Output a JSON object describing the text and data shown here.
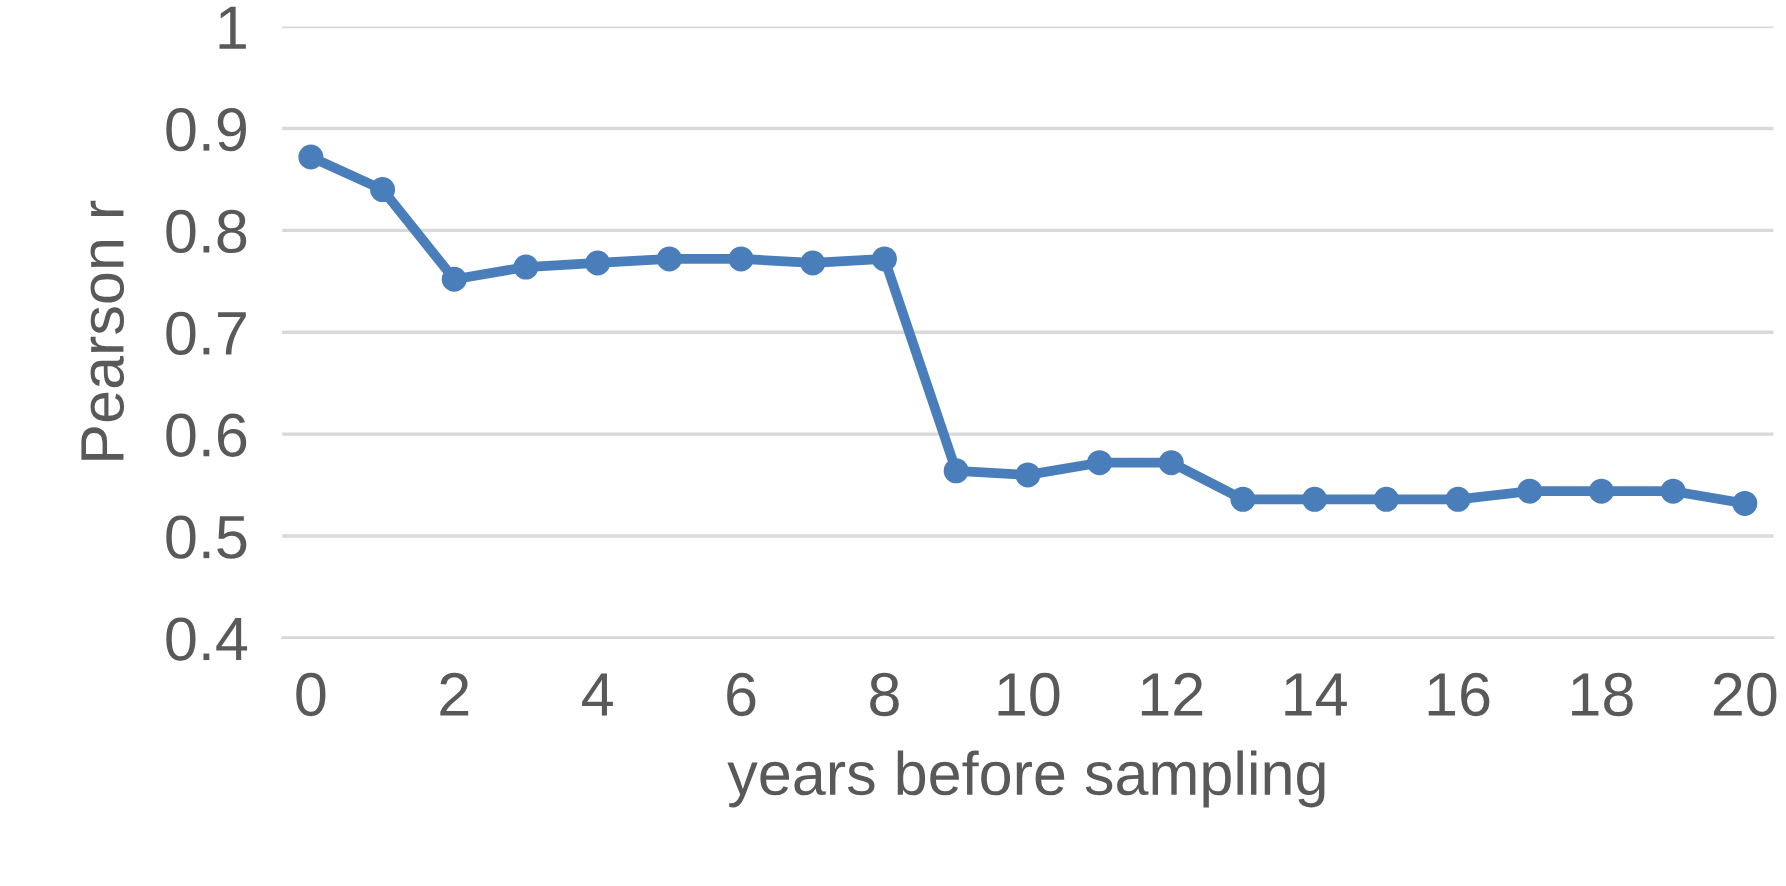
{
  "chart_data": {
    "type": "line",
    "xlabel": "years before sampling",
    "ylabel": "Pearson r",
    "x": [
      0,
      1,
      2,
      3,
      4,
      5,
      6,
      7,
      8,
      9,
      10,
      11,
      12,
      13,
      14,
      15,
      16,
      17,
      18,
      19,
      20
    ],
    "series": [
      {
        "color": "#4a7ebb",
        "values": [
          0.872,
          0.84,
          0.752,
          0.764,
          0.768,
          0.772,
          0.772,
          0.768,
          0.772,
          0.564,
          0.56,
          0.572,
          0.572,
          0.536,
          0.536,
          0.536,
          0.536,
          0.544,
          0.544,
          0.544,
          0.532
        ]
      }
    ],
    "xlim": [
      -0.4,
      20.4
    ],
    "xticks": [
      0,
      2,
      4,
      6,
      8,
      10,
      12,
      14,
      16,
      18,
      20
    ],
    "ylim": [
      0.4,
      1
    ],
    "yticks": [
      0.4,
      0.5,
      0.6,
      0.7,
      0.8,
      0.9,
      1
    ],
    "grid": "y",
    "marker": "circle",
    "line_style": "solid"
  }
}
